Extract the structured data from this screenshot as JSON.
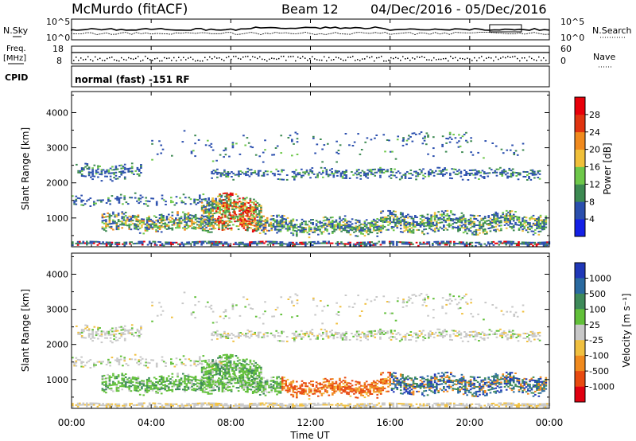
{
  "header": {
    "station": "McMurdo (fitACF)",
    "beam": "Beam 12",
    "date_range": "04/Dec/2016 - 05/Dec/2016"
  },
  "strip": {
    "nsky_label": "N.Sky",
    "nsearch_label": "N.Search",
    "noise_ticks": [
      "10^5",
      "10^0"
    ],
    "freq_label": "Freq.",
    "freq_unit": "[MHz]",
    "freq_ticks": [
      "18",
      "8"
    ],
    "nave_label": "Nave",
    "nave_ticks": [
      "60",
      "0"
    ],
    "cpid_label": "CPID",
    "cpid_text": "normal (fast) -151 RF"
  },
  "chart_data": [
    {
      "type": "heatmap",
      "name": "power",
      "ylabel": "Slant Range [km]",
      "yticks": [
        "1000",
        "2000",
        "3000",
        "4000"
      ],
      "ylim": [
        180,
        4600
      ],
      "xlim_hours": [
        0,
        24
      ],
      "colorbar": {
        "label": "Power [dB]",
        "ticks": [
          "4",
          "8",
          "12",
          "16",
          "20",
          "24",
          "28"
        ],
        "colors": [
          "#1420e6",
          "#2b4fae",
          "#3d8a52",
          "#6ec84a",
          "#f0c03a",
          "#f08a1e",
          "#e03410",
          "#e8000a"
        ]
      }
    },
    {
      "type": "heatmap",
      "name": "velocity",
      "ylabel": "Slant Range [km]",
      "yticks": [
        "1000",
        "2000",
        "3000",
        "4000"
      ],
      "ylim": [
        180,
        4600
      ],
      "xlim_hours": [
        0,
        24
      ],
      "colorbar": {
        "label": "Velocity [m s⁻¹]",
        "ticks": [
          "1000",
          "500",
          "100",
          "25",
          "-25",
          "-100",
          "-500",
          "-1000"
        ],
        "colors": [
          "#2038b8",
          "#2a6aa0",
          "#3e8a5a",
          "#62c03a",
          "#c8c8c8",
          "#f0c040",
          "#f08a1e",
          "#e84a10",
          "#e00010"
        ]
      }
    }
  ],
  "x_axis": {
    "ticks": [
      "00:00",
      "04:00",
      "08:00",
      "12:00",
      "16:00",
      "20:00",
      "00:00"
    ],
    "label": "Time UT"
  }
}
